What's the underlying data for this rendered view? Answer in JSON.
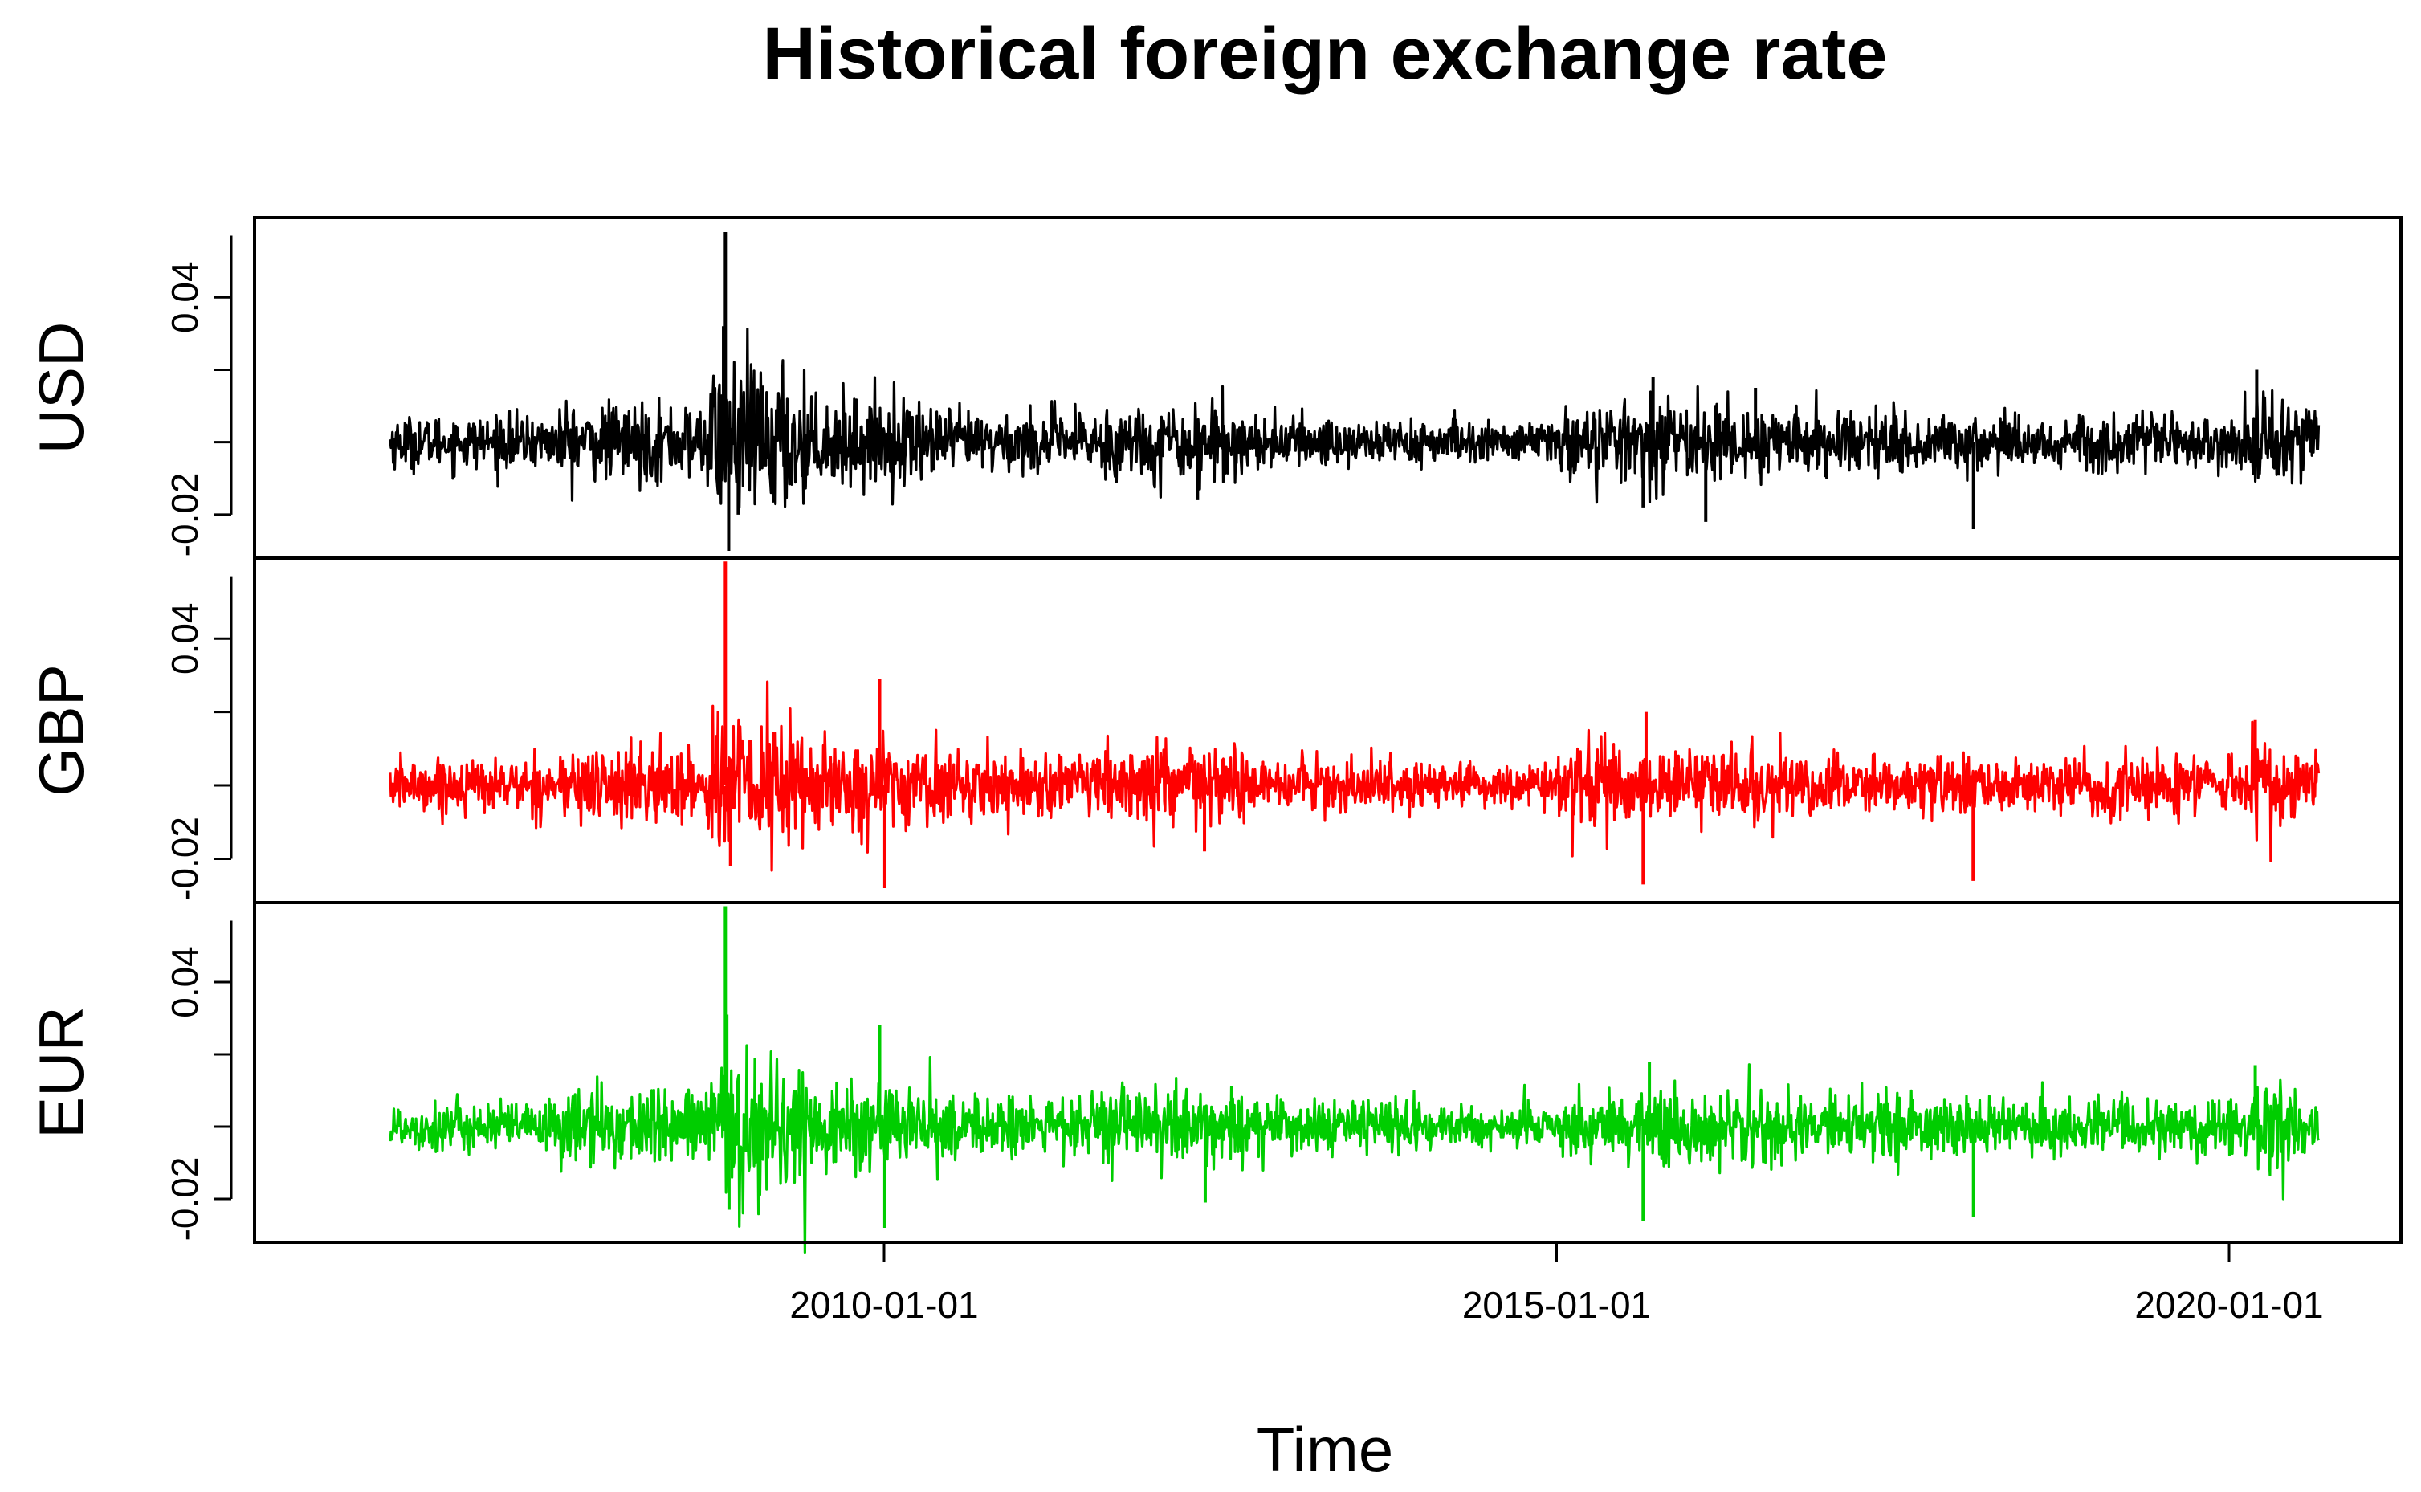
{
  "chart_data": {
    "type": "line",
    "title": "Historical foreign exchange rate",
    "xlabel": "Time",
    "x_ticks": [
      "2010-01-01",
      "2015-01-01",
      "2020-01-01"
    ],
    "x_range": [
      "2006-04-01",
      "2020-10-01"
    ],
    "y_ticks": [
      "-0.02",
      "0.04"
    ],
    "grid": false,
    "legend": "none",
    "panels": [
      {
        "name": "USD",
        "color": "#000000",
        "ylim": [
          -0.03,
          0.06
        ],
        "baseline": 0.0,
        "noise": 0.0035,
        "spikes": [
          {
            "date": "2008-10-27",
            "value": 0.058
          },
          {
            "date": "2008-10-22",
            "value": 0.032
          },
          {
            "date": "2008-11-05",
            "value": -0.03
          },
          {
            "date": "2008-12-01",
            "value": -0.02
          },
          {
            "date": "2012-05-01",
            "value": -0.016
          },
          {
            "date": "2015-08-24",
            "value": -0.018
          },
          {
            "date": "2015-09-20",
            "value": 0.018
          },
          {
            "date": "2016-02-10",
            "value": -0.022
          },
          {
            "date": "2016-06-24",
            "value": 0.015
          },
          {
            "date": "2018-02-06",
            "value": -0.024
          },
          {
            "date": "2020-03-16",
            "value": 0.02
          }
        ]
      },
      {
        "name": "GBP",
        "color": "#ff0000",
        "ylim": [
          -0.03,
          0.06
        ],
        "baseline": 0.0,
        "noise": 0.0035,
        "spikes": [
          {
            "date": "2008-10-27",
            "value": 0.061
          },
          {
            "date": "2008-11-10",
            "value": -0.022
          },
          {
            "date": "2009-12-20",
            "value": 0.029
          },
          {
            "date": "2010-01-03",
            "value": -0.028
          },
          {
            "date": "2012-05-20",
            "value": -0.018
          },
          {
            "date": "2015-08-24",
            "value": -0.027
          },
          {
            "date": "2015-09-01",
            "value": 0.02
          },
          {
            "date": "2018-02-05",
            "value": -0.026
          },
          {
            "date": "2020-03-12",
            "value": 0.018
          }
        ]
      },
      {
        "name": "EUR",
        "color": "#00cd00",
        "ylim": [
          -0.03,
          0.06
        ],
        "baseline": 0.0,
        "noise": 0.0035,
        "spikes": [
          {
            "date": "2008-10-27",
            "value": 0.061
          },
          {
            "date": "2008-10-31",
            "value": 0.031
          },
          {
            "date": "2008-11-06",
            "value": -0.023
          },
          {
            "date": "2009-12-20",
            "value": 0.028
          },
          {
            "date": "2010-01-03",
            "value": -0.028
          },
          {
            "date": "2012-05-22",
            "value": -0.021
          },
          {
            "date": "2015-08-24",
            "value": -0.026
          },
          {
            "date": "2015-09-10",
            "value": 0.018
          },
          {
            "date": "2018-02-06",
            "value": -0.025
          },
          {
            "date": "2020-03-12",
            "value": 0.017
          }
        ]
      }
    ]
  }
}
